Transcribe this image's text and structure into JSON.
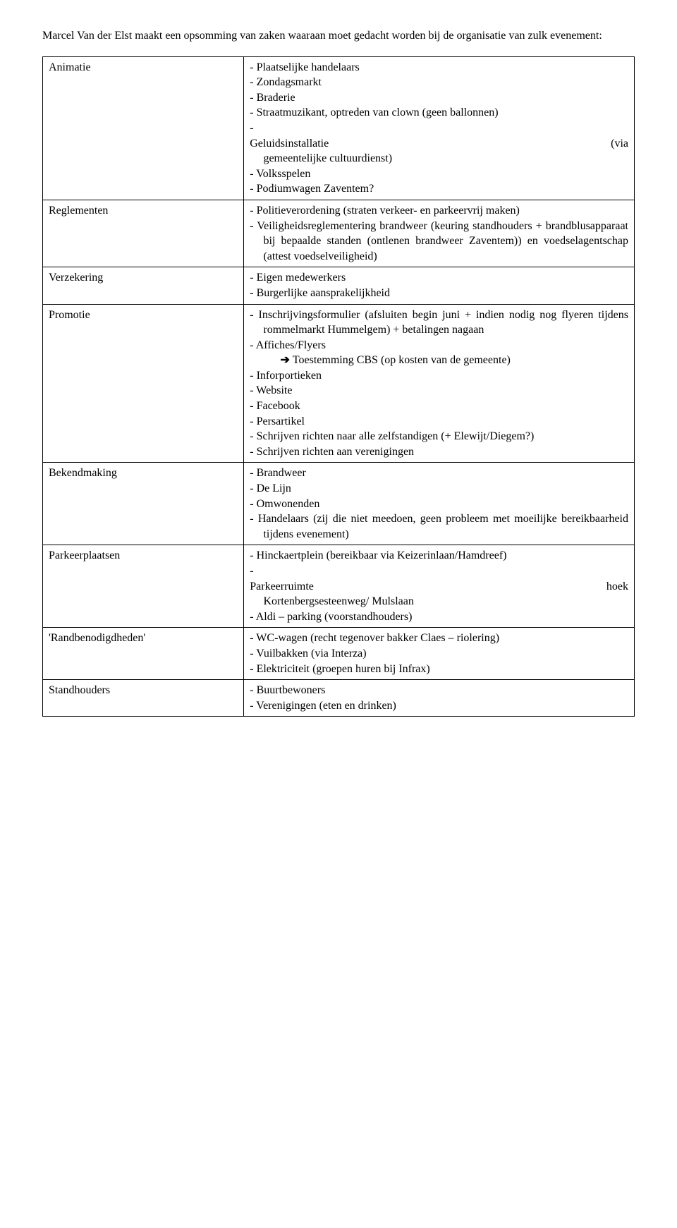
{
  "intro": "Marcel Van der Elst maakt een opsomming van zaken waaraan moet gedacht worden bij de organisatie van zulk evenement:",
  "rows": [
    {
      "category": "Animatie",
      "items": [
        {
          "text": "Plaatselijke handelaars"
        },
        {
          "text": "Zondagsmarkt"
        },
        {
          "text": "Braderie"
        },
        {
          "text": "Straatmuzikant, optreden van clown (geen ballonnen)"
        },
        {
          "type": "split",
          "left": "Geluidsinstallatie",
          "right": "(via"
        },
        {
          "type": "cont",
          "text": "gemeentelijke cultuurdienst)"
        },
        {
          "text": "Volksspelen"
        },
        {
          "text": "Podiumwagen Zaventem?"
        }
      ]
    },
    {
      "category": "Reglementen",
      "items": [
        {
          "text": "Politieverordening (straten verkeer- en parkeervrij maken)"
        },
        {
          "text": "Veiligheidsreglementering brandweer (keuring standhouders + brandblusapparaat bij bepaalde standen (ontlenen brandweer Zaventem)) en voedselagentschap (attest voedselveiligheid)"
        }
      ]
    },
    {
      "category": "Verzekering",
      "items": [
        {
          "text": "Eigen medewerkers"
        },
        {
          "text": "Burgerlijke aansprakelijkheid"
        }
      ]
    },
    {
      "category": "Promotie",
      "items": [
        {
          "text": "Inschrijvingsformulier (afsluiten begin juni + indien nodig nog flyeren tijdens rommelmarkt Hummelgem) + betalingen nagaan"
        },
        {
          "text": "Affiches/Flyers",
          "sub": "Toestemming CBS (op kosten van de gemeente)"
        },
        {
          "text": "Inforportieken"
        },
        {
          "text": "Website"
        },
        {
          "text": "Facebook"
        },
        {
          "text": "Persartikel"
        },
        {
          "text": "Schrijven richten naar alle zelfstandigen (+ Elewijt/Diegem?)"
        },
        {
          "text": "Schrijven richten aan verenigingen"
        }
      ]
    },
    {
      "category": "Bekendmaking",
      "items": [
        {
          "text": "Brandweer"
        },
        {
          "text": "De Lijn"
        },
        {
          "text": "Omwonenden"
        },
        {
          "text": "Handelaars (zij die niet meedoen, geen probleem met moeilijke bereikbaarheid tijdens evenement)"
        }
      ]
    },
    {
      "category": "Parkeerplaatsen",
      "items": [
        {
          "text": "Hinckaertplein (bereikbaar via Keizerinlaan/Hamdreef)"
        },
        {
          "type": "split",
          "left": "Parkeerruimte",
          "right": "hoek"
        },
        {
          "type": "cont",
          "text": "Kortenbergsesteenweg/ Mulslaan"
        },
        {
          "text": "Aldi – parking (voorstandhouders)"
        }
      ]
    },
    {
      "category": "'Randbenodigdheden'",
      "items": [
        {
          "text": "WC-wagen (recht tegenover bakker Claes – riolering)"
        },
        {
          "text": "Vuilbakken (via Interza)"
        },
        {
          "text": "Elektriciteit (groepen huren bij Infrax)"
        }
      ]
    },
    {
      "category": "Standhouders",
      "items": [
        {
          "text": "Buurtbewoners"
        },
        {
          "text": "Verenigingen (eten en drinken)"
        }
      ]
    }
  ]
}
